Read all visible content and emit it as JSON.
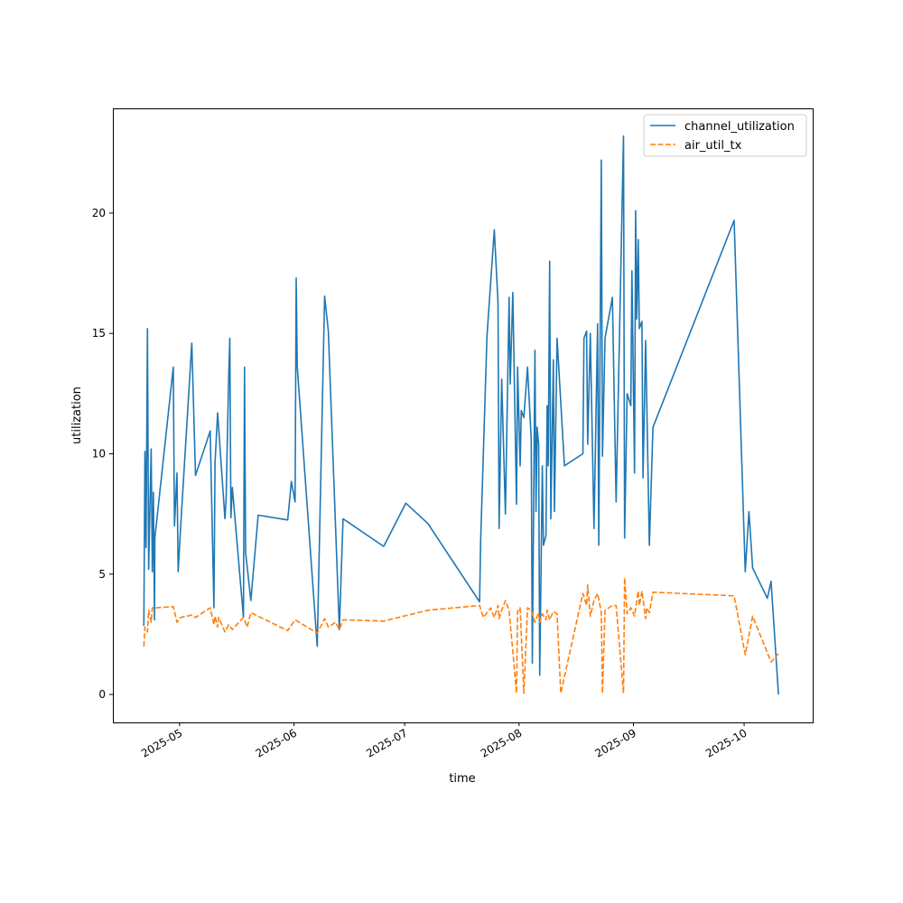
{
  "chart_data": {
    "type": "line",
    "title": "",
    "xlabel": "time",
    "ylabel": "utilization",
    "xlim": [
      "2025-04-12T22:00",
      "2025-10-19T14:00"
    ],
    "ylim": [
      -1.16,
      24.35
    ],
    "grid": false,
    "legend_position": "top-right",
    "x_ticks": [
      "2025-05",
      "2025-06",
      "2025-07",
      "2025-08",
      "2025-09",
      "2025-10"
    ],
    "y_ticks": [
      0,
      5,
      10,
      15,
      20
    ],
    "series": [
      {
        "name": "channel_utilization",
        "color": "#1f77b4",
        "style": "solid",
        "points": [
          [
            "2025-04-21",
            2.85
          ],
          [
            "2025-04-21",
            10.1
          ],
          [
            "2025-04-21",
            6.1
          ],
          [
            "2025-04-22",
            15.2
          ],
          [
            "2025-04-22",
            5.2
          ],
          [
            "2025-04-23",
            10.2
          ],
          [
            "2025-04-23",
            5.1
          ],
          [
            "2025-04-23",
            8.4
          ],
          [
            "2025-04-23",
            3.1
          ],
          [
            "2025-04-24",
            6.5
          ],
          [
            "2025-04-29",
            13.6
          ],
          [
            "2025-04-29",
            7.0
          ],
          [
            "2025-04-30",
            9.2
          ],
          [
            "2025-04-30",
            5.1
          ],
          [
            "2025-05-01",
            7.0
          ],
          [
            "2025-05-04",
            14.6
          ],
          [
            "2025-05-05",
            9.1
          ],
          [
            "2025-05-09",
            10.95
          ],
          [
            "2025-05-10",
            3.6
          ],
          [
            "2025-05-10",
            9.6
          ],
          [
            "2025-05-11",
            11.7
          ],
          [
            "2025-05-13",
            7.3
          ],
          [
            "2025-05-13",
            8.1
          ],
          [
            "2025-05-14",
            13.1
          ],
          [
            "2025-05-14",
            14.8
          ],
          [
            "2025-05-14",
            7.35
          ],
          [
            "2025-05-15",
            8.6
          ],
          [
            "2025-05-18",
            3.2
          ],
          [
            "2025-05-18",
            13.6
          ],
          [
            "2025-05-18",
            5.9
          ],
          [
            "2025-05-20",
            3.9
          ],
          [
            "2025-05-22",
            7.45
          ],
          [
            "2025-05-30",
            7.25
          ],
          [
            "2025-05-31",
            8.85
          ],
          [
            "2025-06-01",
            8.0
          ],
          [
            "2025-06-01",
            17.3
          ],
          [
            "2025-06-01",
            13.6
          ],
          [
            "2025-06-07",
            2.0
          ],
          [
            "2025-06-09",
            16.55
          ],
          [
            "2025-06-10",
            15.1
          ],
          [
            "2025-06-13",
            2.7
          ],
          [
            "2025-06-14",
            7.3
          ],
          [
            "2025-06-25",
            6.15
          ],
          [
            "2025-07-01",
            7.95
          ],
          [
            "2025-07-07",
            7.1
          ],
          [
            "2025-07-21",
            3.85
          ],
          [
            "2025-07-21",
            6.4
          ],
          [
            "2025-07-23",
            14.9
          ],
          [
            "2025-07-25",
            19.3
          ],
          [
            "2025-07-26",
            16.3
          ],
          [
            "2025-07-26",
            6.9
          ],
          [
            "2025-07-27",
            13.1
          ],
          [
            "2025-07-28",
            7.5
          ],
          [
            "2025-07-29",
            16.5
          ],
          [
            "2025-07-29",
            12.9
          ],
          [
            "2025-07-30",
            16.7
          ],
          [
            "2025-07-31",
            7.9
          ],
          [
            "2025-07-31",
            13.6
          ],
          [
            "2025-08-01",
            9.5
          ],
          [
            "2025-08-01",
            11.8
          ],
          [
            "2025-08-02",
            11.5
          ],
          [
            "2025-08-03",
            13.6
          ],
          [
            "2025-08-04",
            10.6
          ],
          [
            "2025-08-04",
            1.3
          ],
          [
            "2025-08-05",
            14.3
          ],
          [
            "2025-08-05",
            7.6
          ],
          [
            "2025-08-05",
            11.1
          ],
          [
            "2025-08-06",
            10.4
          ],
          [
            "2025-08-06",
            0.8
          ],
          [
            "2025-08-07",
            9.5
          ],
          [
            "2025-08-07",
            6.2
          ],
          [
            "2025-08-08",
            6.6
          ],
          [
            "2025-08-08",
            12.0
          ],
          [
            "2025-08-08",
            9.5
          ],
          [
            "2025-08-09",
            18.0
          ],
          [
            "2025-08-09",
            7.3
          ],
          [
            "2025-08-10",
            13.9
          ],
          [
            "2025-08-10",
            7.6
          ],
          [
            "2025-08-11",
            14.8
          ],
          [
            "2025-08-13",
            9.5
          ],
          [
            "2025-08-18",
            10.0
          ],
          [
            "2025-08-18",
            14.8
          ],
          [
            "2025-08-19",
            15.1
          ],
          [
            "2025-08-19",
            10.4
          ],
          [
            "2025-08-20",
            15.0
          ],
          [
            "2025-08-21",
            6.9
          ],
          [
            "2025-08-22",
            15.4
          ],
          [
            "2025-08-22",
            6.2
          ],
          [
            "2025-08-23",
            22.2
          ],
          [
            "2025-08-23",
            9.9
          ],
          [
            "2025-08-24",
            14.8
          ],
          [
            "2025-08-26",
            16.5
          ],
          [
            "2025-08-27",
            8.0
          ],
          [
            "2025-08-29",
            23.2
          ],
          [
            "2025-08-29",
            6.5
          ],
          [
            "2025-08-30",
            12.5
          ],
          [
            "2025-08-31",
            12.0
          ],
          [
            "2025-08-31",
            17.6
          ],
          [
            "2025-09-01",
            9.2
          ],
          [
            "2025-09-01",
            20.1
          ],
          [
            "2025-09-01",
            15.6
          ],
          [
            "2025-09-02",
            18.9
          ],
          [
            "2025-09-02",
            15.2
          ],
          [
            "2025-09-03",
            15.5
          ],
          [
            "2025-09-03",
            9.0
          ],
          [
            "2025-09-04",
            14.7
          ],
          [
            "2025-09-05",
            6.2
          ],
          [
            "2025-09-06",
            11.1
          ],
          [
            "2025-09-28",
            19.7
          ],
          [
            "2025-10-01",
            5.1
          ],
          [
            "2025-10-02",
            7.6
          ],
          [
            "2025-10-03",
            5.25
          ],
          [
            "2025-10-07",
            4.0
          ],
          [
            "2025-10-08",
            4.7
          ],
          [
            "2025-10-10",
            0.0
          ]
        ]
      },
      {
        "name": "air_util_tx",
        "color": "#ff7f0e",
        "style": "dashed",
        "points": [
          [
            "2025-04-21",
            2.0
          ],
          [
            "2025-04-21",
            2.8
          ],
          [
            "2025-04-22",
            2.6
          ],
          [
            "2025-04-22",
            3.5
          ],
          [
            "2025-04-23",
            3.0
          ],
          [
            "2025-04-23",
            3.6
          ],
          [
            "2025-04-24",
            3.6
          ],
          [
            "2025-04-29",
            3.65
          ],
          [
            "2025-04-30",
            3.0
          ],
          [
            "2025-05-01",
            3.2
          ],
          [
            "2025-05-04",
            3.3
          ],
          [
            "2025-05-05",
            3.2
          ],
          [
            "2025-05-09",
            3.6
          ],
          [
            "2025-05-10",
            2.9
          ],
          [
            "2025-05-10",
            3.25
          ],
          [
            "2025-05-11",
            2.8
          ],
          [
            "2025-05-11",
            3.2
          ],
          [
            "2025-05-13",
            2.6
          ],
          [
            "2025-05-14",
            2.9
          ],
          [
            "2025-05-15",
            2.7
          ],
          [
            "2025-05-18",
            3.2
          ],
          [
            "2025-05-19",
            2.8
          ],
          [
            "2025-05-20",
            3.4
          ],
          [
            "2025-05-22",
            3.25
          ],
          [
            "2025-05-30",
            2.65
          ],
          [
            "2025-06-01",
            3.1
          ],
          [
            "2025-06-07",
            2.55
          ],
          [
            "2025-06-09",
            3.15
          ],
          [
            "2025-06-10",
            2.8
          ],
          [
            "2025-06-12",
            3.0
          ],
          [
            "2025-06-13",
            2.7
          ],
          [
            "2025-06-14",
            3.1
          ],
          [
            "2025-06-25",
            3.05
          ],
          [
            "2025-07-07",
            3.5
          ],
          [
            "2025-07-21",
            3.7
          ],
          [
            "2025-07-22",
            3.2
          ],
          [
            "2025-07-24",
            3.6
          ],
          [
            "2025-07-25",
            3.2
          ],
          [
            "2025-07-26",
            3.7
          ],
          [
            "2025-07-26",
            3.15
          ],
          [
            "2025-07-27",
            3.5
          ],
          [
            "2025-07-28",
            3.9
          ],
          [
            "2025-07-29",
            3.5
          ],
          [
            "2025-07-31",
            0.05
          ],
          [
            "2025-07-31",
            3.45
          ],
          [
            "2025-08-01",
            3.6
          ],
          [
            "2025-08-02",
            0.05
          ],
          [
            "2025-08-03",
            3.6
          ],
          [
            "2025-08-04",
            3.5
          ],
          [
            "2025-08-05",
            3.0
          ],
          [
            "2025-08-06",
            3.4
          ],
          [
            "2025-08-06",
            3.0
          ],
          [
            "2025-08-07",
            3.35
          ],
          [
            "2025-08-08",
            3.1
          ],
          [
            "2025-08-08",
            3.5
          ],
          [
            "2025-08-09",
            3.1
          ],
          [
            "2025-08-10",
            3.45
          ],
          [
            "2025-08-11",
            3.35
          ],
          [
            "2025-08-12",
            0.05
          ],
          [
            "2025-08-18",
            4.2
          ],
          [
            "2025-08-19",
            3.7
          ],
          [
            "2025-08-19",
            4.55
          ],
          [
            "2025-08-20",
            3.25
          ],
          [
            "2025-08-21",
            3.9
          ],
          [
            "2025-08-22",
            4.2
          ],
          [
            "2025-08-23",
            3.4
          ],
          [
            "2025-08-23",
            0.05
          ],
          [
            "2025-08-24",
            3.5
          ],
          [
            "2025-08-26",
            3.7
          ],
          [
            "2025-08-27",
            3.7
          ],
          [
            "2025-08-29",
            0.05
          ],
          [
            "2025-08-29",
            4.85
          ],
          [
            "2025-08-30",
            3.35
          ],
          [
            "2025-08-31",
            3.6
          ],
          [
            "2025-09-01",
            3.25
          ],
          [
            "2025-09-02",
            4.3
          ],
          [
            "2025-09-02",
            3.7
          ],
          [
            "2025-09-03",
            4.3
          ],
          [
            "2025-09-04",
            3.15
          ],
          [
            "2025-09-04",
            3.6
          ],
          [
            "2025-09-05",
            3.4
          ],
          [
            "2025-09-06",
            4.25
          ],
          [
            "2025-09-28",
            4.1
          ],
          [
            "2025-10-01",
            1.65
          ],
          [
            "2025-10-03",
            3.25
          ],
          [
            "2025-10-08",
            1.35
          ],
          [
            "2025-10-10",
            1.7
          ]
        ]
      }
    ]
  }
}
